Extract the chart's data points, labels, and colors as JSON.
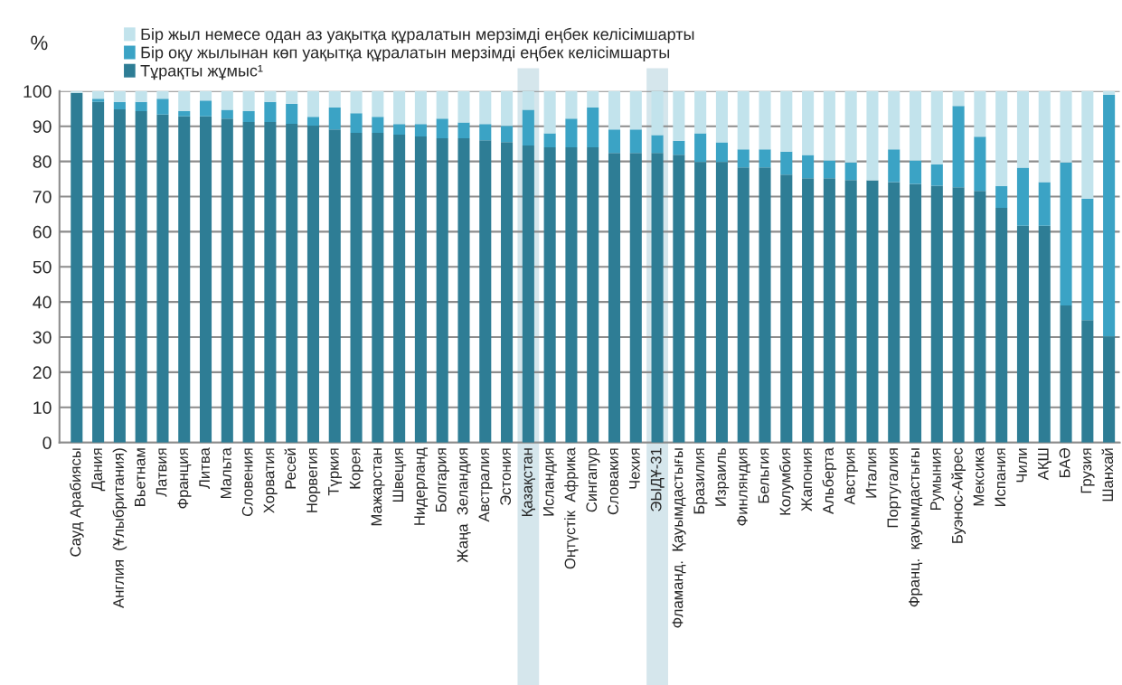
{
  "chart_data": {
    "type": "bar",
    "stacked": true,
    "ylabel": "%",
    "categories": [
      "Сауд Арабиясы",
      "Дания",
      "Англия  (Ұлыбритания)",
      "Вьетнам",
      "Латвия",
      "Франция",
      "Литва",
      "Мальта",
      "Словения",
      "Хорватия",
      "Ресей",
      "Норвегия",
      "Түркия",
      "Корея",
      "Мажарстан",
      "Швеция",
      "Нидерланд",
      "Болгария",
      "Жаңа  Зеландия",
      "Австралия",
      "Эстония",
      "Қазақстан",
      "Исландия",
      "Оңтүстік  Африка",
      "Сингапур",
      "Словакия",
      "Чехия",
      "ЭЫДҰ-31",
      "Фламанд.  Қауымдастығы",
      "Бразилия",
      "Израиль",
      "Финляндия",
      "Бельгия",
      "Колумбия",
      "Жапония",
      "Альберта",
      "Австрия",
      "Италия",
      "Португалия",
      "Франц.  қауымдастығы",
      "Румыния",
      "Буэнос-Айрес",
      "Мексика",
      "Испания",
      "Чили",
      "АҚШ",
      "БАӘ",
      "Грузия",
      "Шанхай"
    ],
    "series": [
      {
        "name": "Тұрақты жұмыс¹",
        "color": "#2e7d95",
        "values": [
          99.5,
          96.9,
          94.8,
          94.3,
          93.3,
          92.8,
          92.8,
          92.2,
          91.2,
          91.2,
          90.7,
          90.2,
          89.1,
          88.1,
          88.1,
          87.6,
          87.1,
          86.6,
          86.6,
          86.0,
          85.5,
          84.5,
          84.0,
          84.0,
          84.0,
          82.4,
          82.4,
          82.4,
          81.9,
          79.8,
          79.8,
          78.3,
          78.3,
          76.2,
          75.2,
          75.2,
          74.7,
          74.6,
          74.1,
          73.6,
          73.1,
          72.6,
          71.6,
          66.8,
          61.7,
          61.7,
          39.0,
          34.8,
          30.2
        ]
      },
      {
        "name": "Бір оқу жылынан көп уақытқа құралатын мерзімді еңбек келісімшарты",
        "color": "#3ba3c5",
        "values": [
          0,
          0.9,
          2.1,
          2.6,
          4.5,
          1.5,
          4.5,
          2.5,
          3.1,
          5.7,
          5.7,
          2.5,
          6.2,
          5.6,
          4.6,
          3.0,
          3.5,
          5.6,
          4.5,
          4.6,
          4.6,
          10.2,
          4.0,
          8.2,
          11.3,
          6.7,
          6.7,
          5.1,
          4.0,
          8.2,
          5.6,
          5.1,
          5.1,
          6.6,
          6.6,
          5.1,
          5.0,
          0,
          9.3,
          6.7,
          6.1,
          23.2,
          15.4,
          6.2,
          16.5,
          12.4,
          40.7,
          34.6,
          68.7
        ]
      },
      {
        "name": "Бір жыл немесе одан аз уақытқа құралатын мерзімді еңбек келісімшарты",
        "color": "#c2e3ec",
        "values": [
          0.5,
          2.2,
          3.1,
          3.1,
          2.2,
          5.7,
          2.7,
          5.3,
          5.7,
          3.1,
          3.6,
          7.3,
          4.7,
          6.3,
          7.3,
          9.4,
          9.4,
          7.8,
          8.9,
          9.4,
          9.9,
          5.3,
          12.0,
          7.8,
          4.7,
          10.9,
          10.9,
          12.5,
          14.1,
          12.0,
          14.6,
          16.6,
          16.6,
          17.2,
          18.2,
          19.7,
          20.3,
          25.4,
          16.6,
          19.7,
          20.8,
          4.2,
          13.0,
          27.0,
          21.8,
          25.9,
          20.3,
          30.6,
          1.1
        ]
      }
    ],
    "ylim": [
      0,
      100
    ],
    "yticks": [
      0,
      10,
      20,
      30,
      40,
      50,
      60,
      70,
      80,
      90,
      100
    ],
    "grid": "y",
    "legend": "top left",
    "bands": [
      {
        "axis": "x",
        "from": "Қазақстан",
        "to": "Қазақстан",
        "color": "#d5e6ec"
      },
      {
        "axis": "x",
        "from": "ЭЫДҰ-31",
        "to": "ЭЫДҰ-31",
        "color": "#d5e6ec"
      }
    ]
  }
}
